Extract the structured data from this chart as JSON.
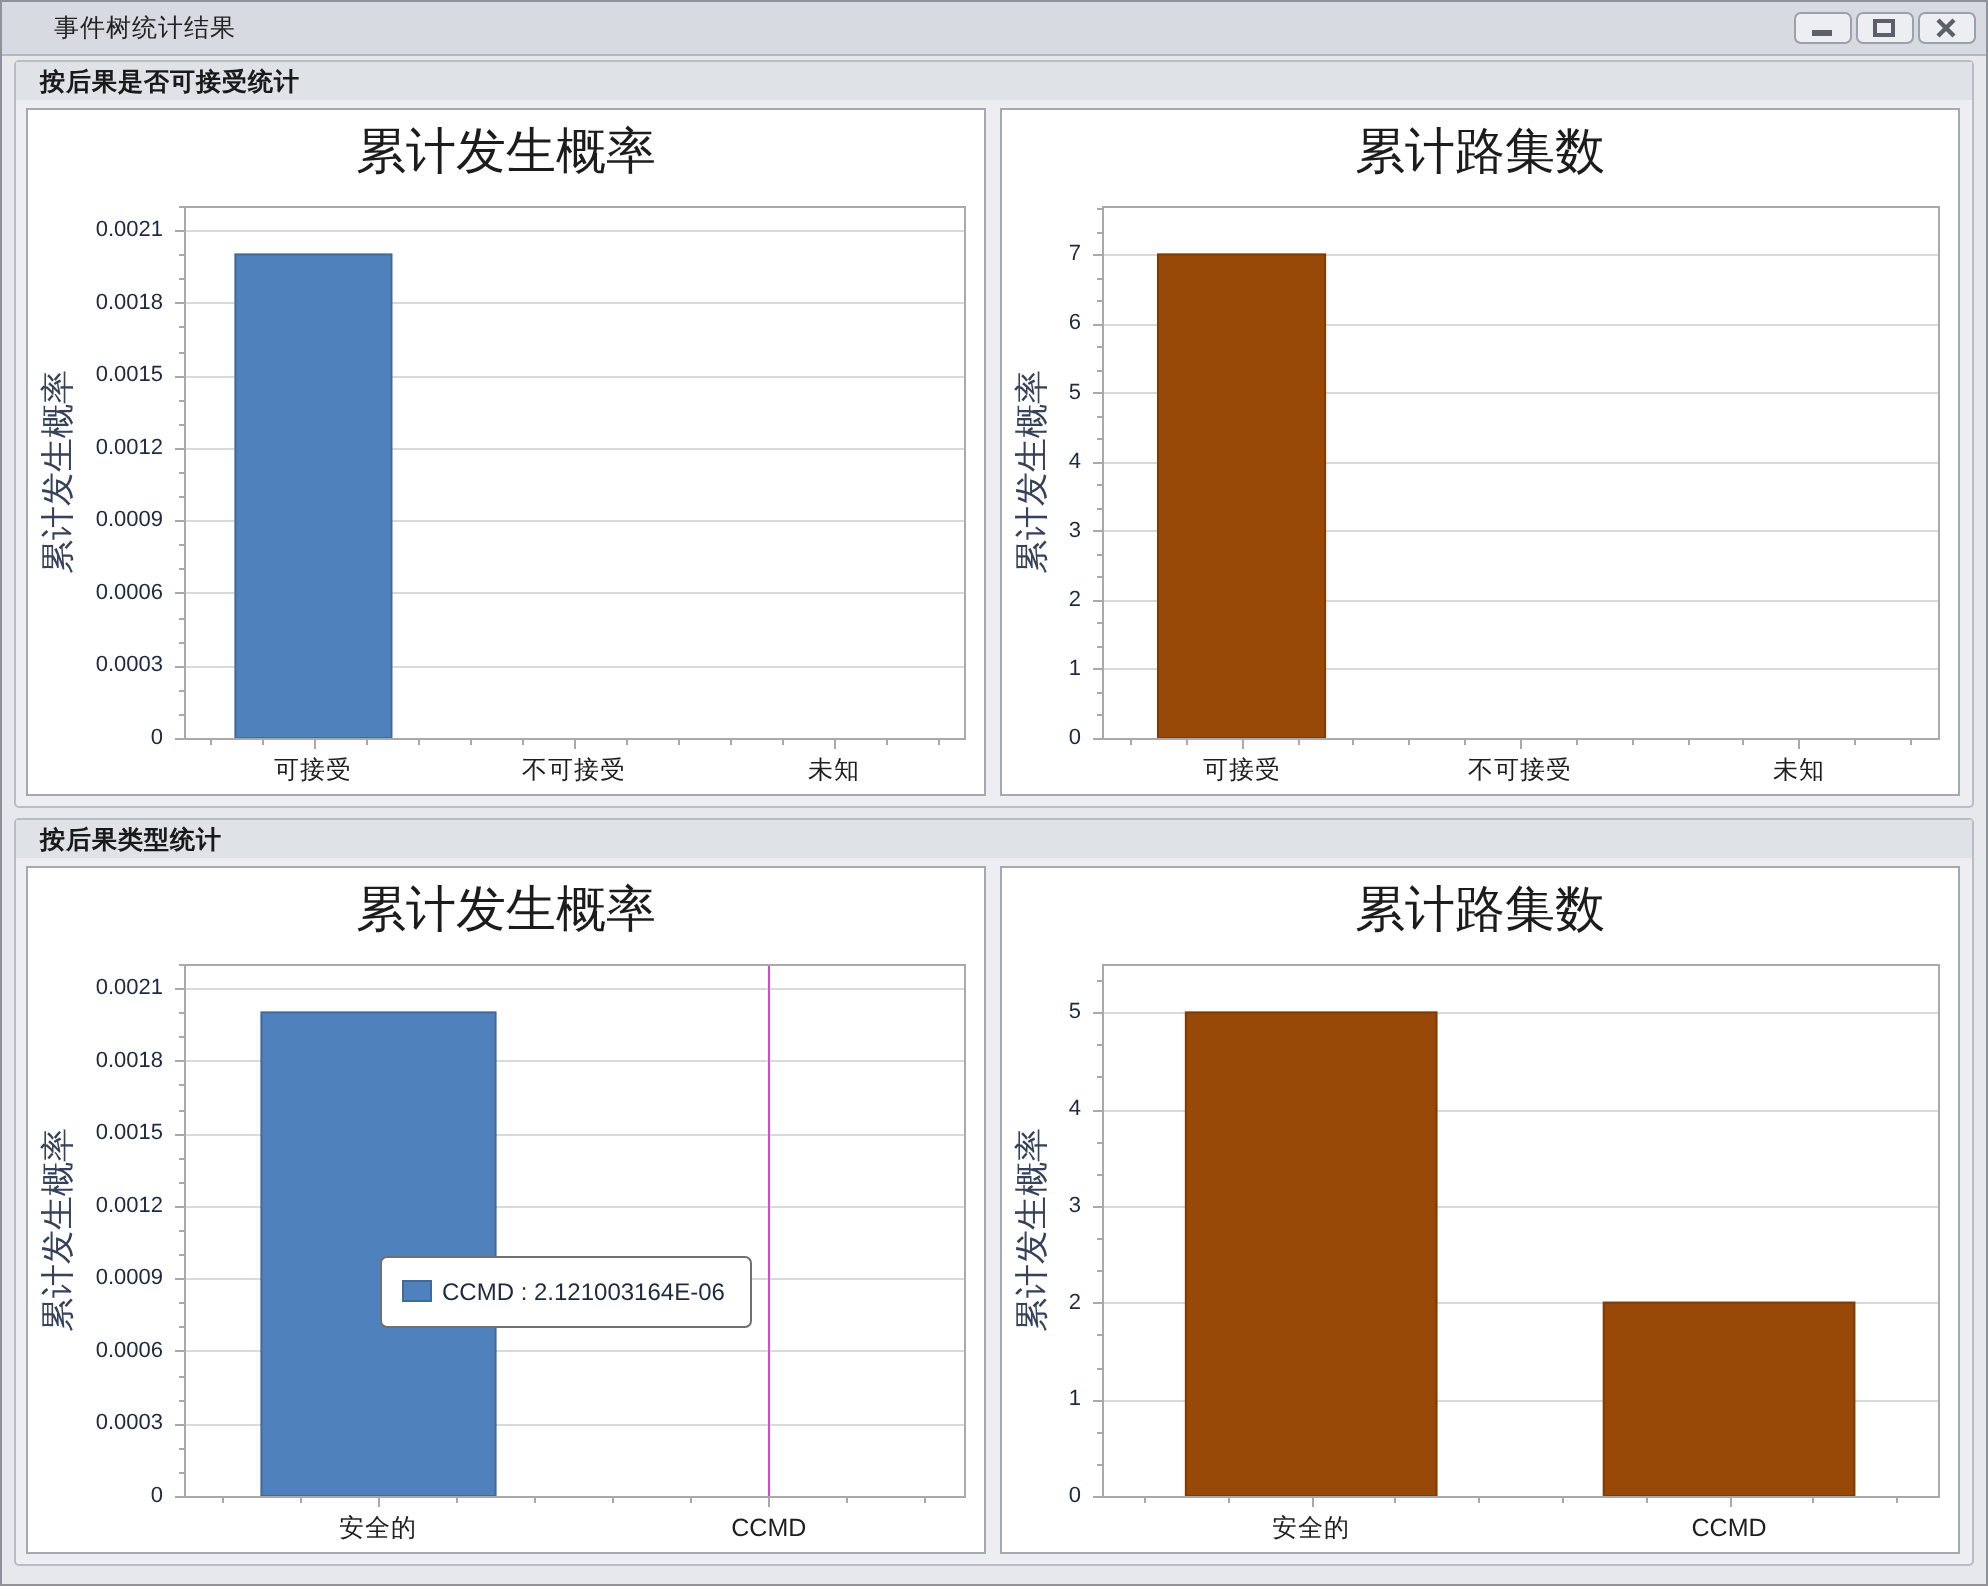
{
  "chart_data": [
    {
      "type": "bar",
      "title": "累计发生概率",
      "subtitle": "按后果是否可接受统计",
      "ylabel": "累计发生概率",
      "categories": [
        "可接受",
        "不可接受",
        "未知"
      ],
      "values": [
        0.002,
        0,
        0
      ],
      "color": "#4f81bd",
      "ylim": [
        0,
        0.0022
      ],
      "yticks": [
        0,
        0.0003,
        0.0006,
        0.0009,
        0.0012,
        0.0015,
        0.0018,
        0.0021
      ],
      "grid": "y",
      "annotations": [
        "事件树统计结果"
      ]
    },
    {
      "type": "bar",
      "title": "累计路集数",
      "ylabel": "累计发生概率",
      "categories": [
        "可接受",
        "不可接受",
        "未知"
      ],
      "values": [
        7,
        0,
        0
      ],
      "color": "#984807",
      "ylim": [
        0,
        7.7
      ],
      "yticks": [
        0,
        1,
        2,
        3,
        4,
        5,
        6,
        7
      ],
      "grid": "y"
    },
    {
      "type": "bar",
      "title": "累计发生概率",
      "subtitle": "按后果类型统计",
      "ylabel": "累计发生概率",
      "categories": [
        "安全的",
        "CCMD"
      ],
      "values": [
        0.002,
        2.121003164e-06
      ],
      "color": "#4f81bd",
      "ylim": [
        0,
        0.0022
      ],
      "yticks": [
        0,
        0.0003,
        0.0006,
        0.0009,
        0.0012,
        0.0015,
        0.0018,
        0.0021
      ],
      "grid": "y",
      "annotations": [
        "CCMD : 2.121003164E-06"
      ],
      "ref_lines": [
        {
          "axis": "x",
          "value": "CCMD",
          "color": "#e040e0"
        }
      ]
    },
    {
      "type": "bar",
      "title": "累计路集数",
      "ylabel": "累计发生概率",
      "categories": [
        "安全的",
        "CCMD"
      ],
      "values": [
        5,
        2
      ],
      "color": "#984807",
      "ylim": [
        0,
        5.5
      ],
      "yticks": [
        0,
        1,
        2,
        3,
        4,
        5
      ],
      "grid": "y"
    }
  ]
}
